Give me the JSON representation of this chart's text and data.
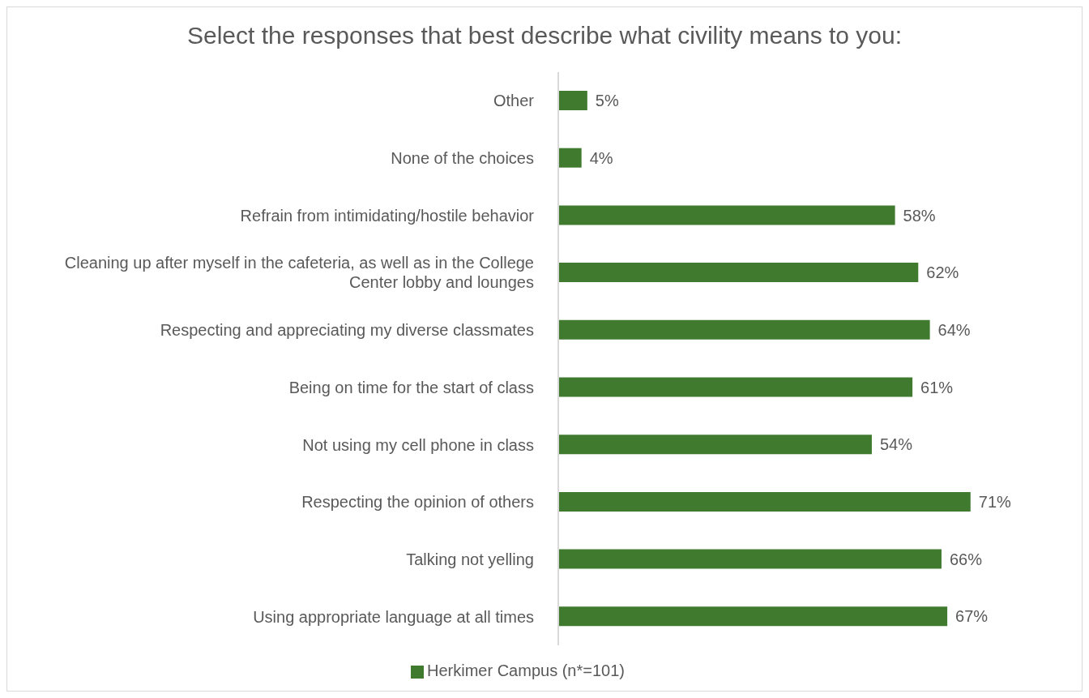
{
  "chart_data": {
    "type": "bar",
    "orientation": "horizontal",
    "title": "Select the responses that best describe what civility means to you:",
    "categories": [
      "Other",
      "None of the choices",
      "Refrain from intimidating/hostile behavior",
      "Cleaning up after myself in the cafeteria, as well as in the College Center lobby and lounges",
      "Respecting and appreciating my diverse classmates",
      "Being on time for the start of class",
      "Not using my cell phone in class",
      "Respecting the opinion of others",
      "Talking not yelling",
      "Using appropriate language at all times"
    ],
    "series": [
      {
        "name": "Herkimer Campus (n*=101)",
        "color": "#3f7a2e",
        "values": [
          5,
          4,
          58,
          62,
          64,
          61,
          54,
          71,
          66,
          67
        ],
        "value_labels": [
          "5%",
          "4%",
          "58%",
          "62%",
          "64%",
          "61%",
          "54%",
          "71%",
          "66%",
          "67%"
        ]
      }
    ],
    "grid": false,
    "legend": "bottom"
  }
}
